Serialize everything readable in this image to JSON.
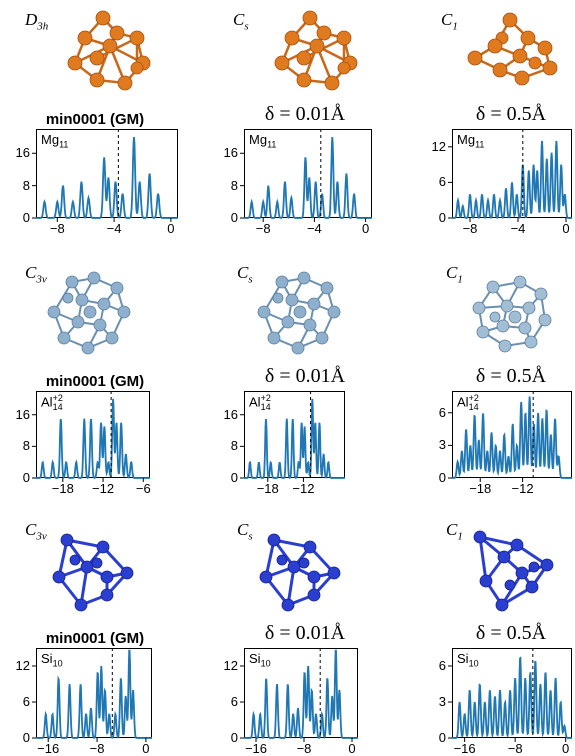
{
  "sections": [
    {
      "species_label": "Mg",
      "species_sub": "11",
      "species_sup": "",
      "symmetries": [
        {
          "main": "D",
          "sub": "3h"
        },
        {
          "main": "C",
          "sub": "s"
        },
        {
          "main": "C",
          "sub": "1"
        }
      ],
      "headers": [
        "min0001 (GM)",
        "δ = 0.01Å",
        "δ = 0.5Å"
      ],
      "color": "#e07a1e"
    },
    {
      "species_label": "Al",
      "species_sub": "14",
      "species_sup": "+2",
      "symmetries": [
        {
          "main": "C",
          "sub": "3v"
        },
        {
          "main": "C",
          "sub": "s"
        },
        {
          "main": "C",
          "sub": "1"
        }
      ],
      "headers": [
        "min0001 (GM)",
        "δ = 0.01Å",
        "δ = 0.5Å"
      ],
      "color": "#86aac6"
    },
    {
      "species_label": "Si",
      "species_sub": "10",
      "species_sup": "",
      "symmetries": [
        {
          "main": "C",
          "sub": "3v"
        },
        {
          "main": "C",
          "sub": "s"
        },
        {
          "main": "C",
          "sub": "1"
        }
      ],
      "headers": [
        "min0001 (GM)",
        "δ = 0.01Å",
        "δ = 0.5Å"
      ],
      "color": "#2a3fd0"
    }
  ],
  "chart_data": [
    {
      "type": "line",
      "panel": "Mg11-GM",
      "xlim": [
        -9.5,
        0.5
      ],
      "ylim": [
        0,
        22
      ],
      "xticks": [
        -8,
        -4,
        0
      ],
      "yticks": [
        0,
        8,
        16
      ],
      "fermi": -3.7,
      "x": [
        -9.2,
        -8.9,
        -8.0,
        -7.6,
        -6.9,
        -6.3,
        -5.8,
        -4.7,
        -4.4,
        -3.9,
        -3.4,
        -2.6,
        -2.2,
        -1.5,
        -0.9,
        -0.4
      ],
      "y": [
        0,
        4,
        4,
        8,
        4,
        9,
        5,
        15,
        10,
        9,
        6,
        20,
        9,
        11,
        6,
        0
      ]
    },
    {
      "type": "line",
      "panel": "Mg11-001",
      "xlim": [
        -9.5,
        0.5
      ],
      "ylim": [
        0,
        22
      ],
      "xticks": [
        -8,
        -4,
        0
      ],
      "yticks": [
        0,
        8,
        16
      ],
      "fermi": -3.5,
      "x": [
        -9.2,
        -8.9,
        -8.0,
        -7.6,
        -6.9,
        -6.3,
        -5.8,
        -4.7,
        -4.4,
        -3.9,
        -3.4,
        -2.6,
        -2.2,
        -1.5,
        -0.9,
        -0.4
      ],
      "y": [
        0,
        4,
        4,
        8,
        4,
        9,
        5,
        15,
        10,
        9,
        6,
        20,
        9,
        11,
        6,
        0
      ]
    },
    {
      "type": "line",
      "panel": "Mg11-05",
      "xlim": [
        -9.5,
        0.5
      ],
      "ylim": [
        0,
        15
      ],
      "xticks": [
        -8,
        -4,
        0
      ],
      "yticks": [
        0,
        6,
        12
      ],
      "fermi": -3.6,
      "x": [
        -9.3,
        -9.0,
        -8.6,
        -8.0,
        -7.5,
        -7.0,
        -6.5,
        -6.0,
        -5.5,
        -5.0,
        -4.5,
        -4.1,
        -3.6,
        -3.1,
        -2.7,
        -2.4,
        -2.0,
        -1.6,
        -1.2,
        -0.8,
        -0.4,
        -0.1
      ],
      "y": [
        0,
        3,
        2,
        4,
        3,
        4,
        3,
        4,
        3,
        5,
        6,
        4,
        9,
        8,
        9,
        8,
        13,
        10,
        11,
        13,
        9,
        4
      ]
    },
    {
      "type": "line",
      "panel": "Al14-GM",
      "xlim": [
        -22,
        -5
      ],
      "ylim": [
        0,
        22
      ],
      "xticks": [
        -18,
        -12,
        -6
      ],
      "yticks": [
        0,
        8,
        16
      ],
      "fermi": -10.8,
      "x": [
        -21.5,
        -21.0,
        -19.5,
        -18.3,
        -17.5,
        -16.0,
        -14.8,
        -13.8,
        -12.8,
        -12.3,
        -11.8,
        -11.2,
        -10.5,
        -10.0,
        -9.3,
        -8.6,
        -7.8,
        -7.2
      ],
      "y": [
        0,
        4,
        4,
        15,
        4,
        4,
        15,
        15,
        4,
        14,
        13,
        4,
        20,
        14,
        14,
        6,
        4,
        0
      ]
    },
    {
      "type": "line",
      "panel": "Al14-001",
      "xlim": [
        -22,
        -5
      ],
      "ylim": [
        0,
        22
      ],
      "xticks": [
        -18,
        -12
      ],
      "yticks": [
        0,
        8,
        16
      ],
      "fermi": -10.8,
      "x": [
        -21.5,
        -21.0,
        -19.5,
        -18.3,
        -17.5,
        -16.0,
        -14.8,
        -13.8,
        -12.8,
        -12.3,
        -11.8,
        -11.2,
        -10.5,
        -10.0,
        -9.3,
        -8.6,
        -7.8,
        -7.2
      ],
      "y": [
        0,
        4,
        4,
        15,
        4,
        4,
        15,
        15,
        4,
        14,
        13,
        4,
        20,
        14,
        14,
        6,
        4,
        0
      ]
    },
    {
      "type": "line",
      "panel": "Al14-05",
      "xlim": [
        -22,
        -5
      ],
      "ylim": [
        0,
        8
      ],
      "xticks": [
        -18,
        -12
      ],
      "yticks": [
        0,
        3,
        6
      ],
      "fermi": -10.5,
      "x": [
        -21.7,
        -21.2,
        -20.6,
        -20.0,
        -19.4,
        -18.8,
        -18.2,
        -17.6,
        -17.0,
        -16.4,
        -15.8,
        -15.2,
        -14.6,
        -14.0,
        -13.4,
        -12.8,
        -12.2,
        -11.6,
        -11.0,
        -10.4,
        -9.8,
        -9.2,
        -8.6,
        -8.0,
        -7.4,
        -6.9
      ],
      "y": [
        0,
        1.5,
        2.5,
        4.5,
        3,
        5.8,
        3.5,
        6,
        2.5,
        4.2,
        3,
        2.5,
        4,
        2,
        5,
        3,
        7,
        6,
        7.5,
        5,
        6,
        5.5,
        6.3,
        4,
        5.5,
        2
      ]
    },
    {
      "type": "line",
      "panel": "Si10-GM",
      "xlim": [
        -18,
        1
      ],
      "ylim": [
        0,
        15
      ],
      "xticks": [
        -16,
        -8,
        0
      ],
      "yticks": [
        0,
        6,
        12
      ],
      "fermi": -5.5,
      "x": [
        -17.3,
        -16.4,
        -15.3,
        -14.3,
        -12.5,
        -10.7,
        -9.8,
        -9.0,
        -7.9,
        -7.3,
        -6.7,
        -6.0,
        -5.0,
        -4.1,
        -3.3,
        -2.7,
        -2.1,
        -1.3
      ],
      "y": [
        0,
        4,
        4,
        10,
        9,
        9,
        4,
        5,
        11,
        12,
        8,
        4,
        4,
        10,
        7,
        15,
        8,
        0
      ]
    },
    {
      "type": "line",
      "panel": "Si10-001",
      "xlim": [
        -18,
        1
      ],
      "ylim": [
        0,
        15
      ],
      "xticks": [
        -16,
        -8,
        0
      ],
      "yticks": [
        0,
        6,
        12
      ],
      "fermi": -5.3,
      "x": [
        -17.3,
        -16.4,
        -15.3,
        -14.3,
        -12.5,
        -10.7,
        -9.8,
        -9.0,
        -7.9,
        -7.3,
        -6.7,
        -6.0,
        -5.0,
        -4.1,
        -3.3,
        -2.7,
        -2.1,
        -1.3
      ],
      "y": [
        0,
        4,
        4,
        10,
        9,
        9,
        4,
        5,
        11,
        12,
        8,
        4,
        4,
        10,
        7,
        15,
        8,
        0
      ]
    },
    {
      "type": "line",
      "panel": "Si10-05",
      "xlim": [
        -18,
        1
      ],
      "ylim": [
        0,
        7.5
      ],
      "xticks": [
        -16,
        -8,
        0
      ],
      "yticks": [
        0,
        3,
        6
      ],
      "fermi": -5.2,
      "x": [
        -17.5,
        -16.8,
        -16.0,
        -15.2,
        -14.4,
        -13.6,
        -12.8,
        -12.0,
        -11.2,
        -10.4,
        -9.6,
        -8.8,
        -8.0,
        -7.2,
        -6.4,
        -5.6,
        -4.8,
        -4.0,
        -3.2,
        -2.4,
        -1.6,
        -0.8,
        -0.2
      ],
      "y": [
        0,
        3,
        2,
        4,
        3,
        4.5,
        3,
        4,
        3.5,
        4,
        3,
        4,
        5,
        6.8,
        5,
        5.5,
        6.5,
        4.5,
        5.5,
        4,
        5,
        3,
        1
      ]
    }
  ]
}
